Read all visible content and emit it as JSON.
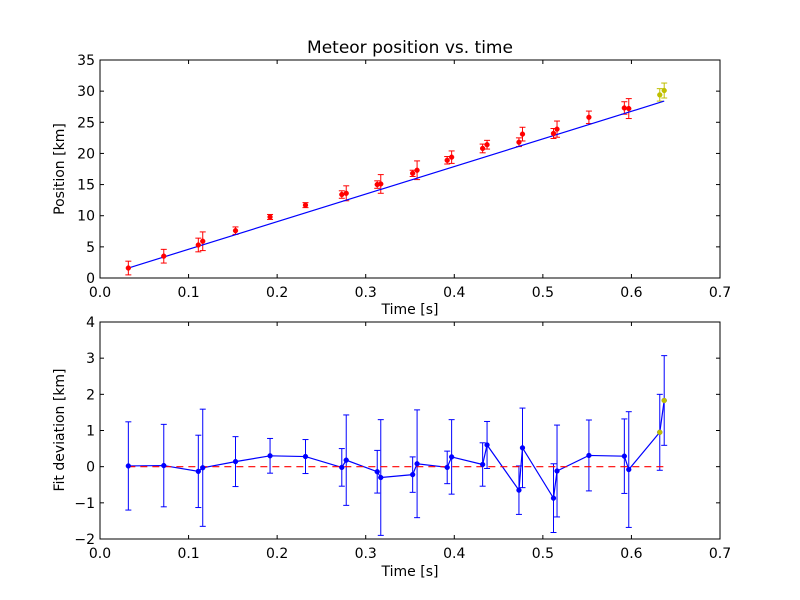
{
  "chart_data": [
    {
      "type": "scatter",
      "title": "Meteor position vs. time",
      "xlabel": "Time [s]",
      "ylabel": "Position [km]",
      "xlim": [
        0.0,
        0.7
      ],
      "ylim": [
        0,
        35
      ],
      "xticks": [
        "0.0",
        "0.1",
        "0.2",
        "0.3",
        "0.4",
        "0.5",
        "0.6",
        "0.7"
      ],
      "yticks": [
        "0",
        "5",
        "10",
        "15",
        "20",
        "25",
        "30",
        "35"
      ],
      "grid": false,
      "series": [
        {
          "role": "measurements",
          "color": "#ff0000",
          "marker": "dot",
          "x": [
            0.032,
            0.072,
            0.111,
            0.116,
            0.153,
            0.192,
            0.232,
            0.273,
            0.278,
            0.313,
            0.317,
            0.353,
            0.358,
            0.392,
            0.397,
            0.432,
            0.437,
            0.473,
            0.477,
            0.512,
            0.516,
            0.552,
            0.592,
            0.597
          ],
          "y": [
            1.6,
            3.5,
            5.3,
            5.9,
            7.6,
            9.8,
            11.7,
            13.4,
            13.6,
            15.0,
            15.1,
            16.8,
            17.3,
            18.9,
            19.4,
            20.8,
            21.4,
            21.8,
            23.1,
            23.2,
            23.9,
            25.8,
            27.3,
            27.2
          ],
          "error": [
            1.1,
            1.1,
            1.1,
            1.5,
            0.6,
            0.4,
            0.4,
            0.6,
            1.2,
            0.6,
            1.5,
            0.5,
            1.5,
            0.6,
            1.0,
            0.7,
            0.7,
            0.7,
            1.1,
            0.8,
            1.3,
            1.0,
            1.0,
            1.6
          ]
        },
        {
          "role": "extra-measurements",
          "color": "#bfbf00",
          "marker": "dot",
          "x": [
            0.632,
            0.637
          ],
          "y": [
            29.4,
            30.1
          ],
          "error": [
            1.0,
            1.2
          ]
        },
        {
          "role": "linear-fit",
          "color": "#0000ff",
          "type": "line",
          "x": [
            0.032,
            0.637
          ],
          "y": [
            1.6,
            28.4
          ]
        }
      ]
    },
    {
      "type": "line",
      "title": "",
      "xlabel": "Time [s]",
      "ylabel": "Fit deviation [km]",
      "xlim": [
        0.0,
        0.7
      ],
      "ylim": [
        -2,
        4
      ],
      "xticks": [
        "0.0",
        "0.1",
        "0.2",
        "0.3",
        "0.4",
        "0.5",
        "0.6",
        "0.7"
      ],
      "yticks": [
        "−2",
        "−1",
        "0",
        "1",
        "2",
        "3",
        "4"
      ],
      "grid": false,
      "series": [
        {
          "role": "residuals",
          "color": "#0000ff",
          "marker": "dot",
          "x": [
            0.032,
            0.072,
            0.111,
            0.116,
            0.153,
            0.192,
            0.232,
            0.273,
            0.278,
            0.313,
            0.317,
            0.353,
            0.358,
            0.392,
            0.397,
            0.432,
            0.437,
            0.473,
            0.477,
            0.512,
            0.516,
            0.552,
            0.592,
            0.597,
            0.632,
            0.637
          ],
          "y": [
            0.02,
            0.03,
            -0.13,
            -0.03,
            0.14,
            0.3,
            0.28,
            -0.02,
            0.18,
            -0.14,
            -0.3,
            -0.22,
            0.08,
            -0.02,
            0.27,
            0.06,
            0.6,
            -0.65,
            0.52,
            -0.87,
            -0.12,
            0.31,
            0.29,
            -0.08,
            0.95,
            1.83
          ],
          "error": [
            1.22,
            1.14,
            1.0,
            1.62,
            0.69,
            0.48,
            0.47,
            0.52,
            1.25,
            0.59,
            1.6,
            0.49,
            1.49,
            0.45,
            1.03,
            0.6,
            0.65,
            0.67,
            1.1,
            0.95,
            1.27,
            0.98,
            1.03,
            1.6,
            1.05,
            1.24
          ]
        },
        {
          "role": "extra-residuals",
          "color": "#bfbf00",
          "marker": "dot",
          "x": [
            0.632,
            0.637
          ],
          "y": [
            0.95,
            1.83
          ]
        },
        {
          "role": "zero-line",
          "color": "#ff0000",
          "type": "dashed-line",
          "x": [
            0.032,
            0.637
          ],
          "y": [
            0,
            0
          ]
        }
      ]
    }
  ]
}
